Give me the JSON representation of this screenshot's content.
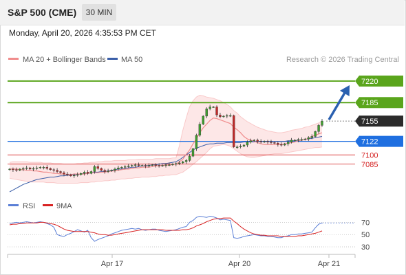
{
  "header": {
    "instrument": "S&P 500 (CME)",
    "interval": "30 MIN"
  },
  "timestamp": "Monday, April 20, 2026 4:35:53 PM CET",
  "legend": {
    "ma20": "MA 20 + Bollinger Bands",
    "ma50": "MA 50",
    "credit": "Research © 2026 Trading Central"
  },
  "colors": {
    "up_target": "#5aa51c",
    "current": "#2b2b2b",
    "pivot": "#1f6fe0",
    "support": "#d42020",
    "ma20": "#f08c8c",
    "ma50": "#3a5ea8",
    "bollinger_fill": "#fde3e3",
    "rsi": "#5b7fd6",
    "rsi_ma": "#d82222",
    "arrow": "#2a60b0"
  },
  "chart_data": [
    {
      "type": "candlestick",
      "title": "",
      "ylim": [
        7030,
        7240
      ],
      "x_ticks": [
        "Apr 17",
        "Apr 20",
        "Apr 21"
      ],
      "levels": [
        {
          "name": "resistance-2",
          "value": 7220,
          "label": "7220",
          "style": "green-line"
        },
        {
          "name": "resistance-1",
          "value": 7185,
          "label": "7185",
          "style": "green-line"
        },
        {
          "name": "last-price",
          "value": 7155,
          "label": "7155",
          "style": "dotted"
        },
        {
          "name": "pivot",
          "value": 7122,
          "label": "7122",
          "style": "blue-line"
        },
        {
          "name": "support-1",
          "value": 7100,
          "label": "7100",
          "style": "red-line"
        },
        {
          "name": "support-2",
          "value": 7085,
          "label": "7085",
          "style": "red-line"
        }
      ],
      "close": [
        7077,
        7076,
        7075,
        7077,
        7078,
        7079,
        7077,
        7078,
        7079,
        7080,
        7080,
        7078,
        7076,
        7075,
        7073,
        7071,
        7069,
        7068,
        7066,
        7067,
        7068,
        7070,
        7072,
        7070,
        7073,
        7081,
        7078,
        7075,
        7073,
        7074,
        7075,
        7077,
        7079,
        7080,
        7081,
        7082,
        7083,
        7084,
        7083,
        7083,
        7082,
        7083,
        7084,
        7083,
        7082,
        7083,
        7084,
        7084,
        7085,
        7086,
        7087,
        7089,
        7091,
        7098,
        7110,
        7132,
        7150,
        7163,
        7175,
        7178,
        7178,
        7165,
        7162,
        7163,
        7164,
        7164,
        7113,
        7113,
        7114,
        7116,
        7121,
        7123,
        7124,
        7122,
        7121,
        7122,
        7121,
        7120,
        7119,
        7117,
        7116,
        7118,
        7121,
        7124,
        7124,
        7125,
        7125,
        7126,
        7128,
        7130,
        7138,
        7148,
        7155
      ],
      "ma20": [
        7077,
        7077,
        7077,
        7076,
        7076,
        7075,
        7075,
        7074,
        7074,
        7073,
        7072,
        7072,
        7071,
        7070,
        7070,
        7069,
        7069,
        7068,
        7068,
        7069,
        7069,
        7069,
        7069,
        7070,
        7071,
        7071,
        7071,
        7072,
        7072,
        7073,
        7074,
        7074,
        7075,
        7076,
        7077,
        7077,
        7078,
        7079,
        7079,
        7080,
        7080,
        7080,
        7081,
        7082,
        7083,
        7083,
        7083,
        7084,
        7084,
        7085,
        7089,
        7093,
        7101,
        7108,
        7118,
        7126,
        7136,
        7144,
        7150,
        7156,
        7160,
        7159,
        7157,
        7155,
        7153,
        7151,
        7145,
        7141,
        7136,
        7130,
        7126,
        7124,
        7122,
        7120,
        7118,
        7117,
        7117,
        7117,
        7117,
        7117,
        7117,
        7118,
        7119,
        7120,
        7121,
        7123,
        7124,
        7125,
        7127,
        7130,
        7132,
        7134,
        7136
      ],
      "ma50": [
        7040,
        7043,
        7046,
        7049,
        7052,
        7054,
        7056,
        7058,
        7060,
        7061,
        7062,
        7063,
        7064,
        7064,
        7065,
        7066,
        7066,
        7067,
        7067,
        7068,
        7068,
        7069,
        7070,
        7070,
        7071,
        7072,
        7072,
        7073,
        7073,
        7074,
        7075,
        7076,
        7077,
        7077,
        7078,
        7079,
        7080,
        7080,
        7081,
        7082,
        7082,
        7083,
        7084,
        7084,
        7085,
        7086,
        7086,
        7087,
        7088,
        7089,
        7092,
        7096,
        7100,
        7104,
        7108,
        7111,
        7113,
        7115,
        7117,
        7118,
        7118,
        7119,
        7119,
        7119,
        7120,
        7120,
        7120,
        7120,
        7120,
        7121,
        7121,
        7121,
        7121,
        7122,
        7122,
        7122,
        7122,
        7122,
        7122,
        7122,
        7122,
        7122,
        7123,
        7123,
        7123,
        7124,
        7124,
        7125,
        7126,
        7127,
        7128,
        7129,
        7130
      ],
      "bb_upper": [
        7088,
        7089,
        7089,
        7089,
        7089,
        7089,
        7088,
        7088,
        7088,
        7088,
        7087,
        7087,
        7087,
        7086,
        7086,
        7086,
        7085,
        7085,
        7085,
        7085,
        7086,
        7086,
        7087,
        7087,
        7088,
        7088,
        7089,
        7089,
        7090,
        7090,
        7090,
        7091,
        7091,
        7091,
        7091,
        7092,
        7092,
        7092,
        7093,
        7093,
        7093,
        7093,
        7093,
        7094,
        7094,
        7094,
        7094,
        7094,
        7095,
        7095,
        7115,
        7140,
        7160,
        7178,
        7188,
        7194,
        7197,
        7196,
        7194,
        7193,
        7192,
        7190,
        7188,
        7185,
        7182,
        7178,
        7172,
        7168,
        7162,
        7158,
        7154,
        7151,
        7148,
        7145,
        7143,
        7141,
        7139,
        7138,
        7137,
        7136,
        7136,
        7137,
        7138,
        7140,
        7141,
        7142,
        7143,
        7145,
        7146,
        7148,
        7150,
        7152,
        7155
      ],
      "bb_lower": [
        7062,
        7061,
        7060,
        7059,
        7058,
        7057,
        7056,
        7056,
        7056,
        7056,
        7056,
        7055,
        7055,
        7055,
        7054,
        7054,
        7054,
        7054,
        7054,
        7054,
        7054,
        7055,
        7055,
        7055,
        7056,
        7056,
        7057,
        7057,
        7058,
        7058,
        7059,
        7059,
        7060,
        7061,
        7061,
        7062,
        7062,
        7063,
        7063,
        7064,
        7064,
        7064,
        7065,
        7065,
        7066,
        7066,
        7067,
        7067,
        7068,
        7068,
        7070,
        7072,
        7076,
        7080,
        7085,
        7089,
        7094,
        7099,
        7104,
        7110,
        7114,
        7115,
        7116,
        7117,
        7116,
        7114,
        7110,
        7106,
        7102,
        7099,
        7097,
        7096,
        7096,
        7097,
        7098,
        7099,
        7100,
        7101,
        7102,
        7102,
        7102,
        7103,
        7104,
        7105,
        7106,
        7107,
        7108,
        7109,
        7110,
        7111,
        7112,
        7112,
        7113
      ],
      "forecast": {
        "from": 7155,
        "to": 7220,
        "direction": "up"
      }
    },
    {
      "type": "line",
      "title": "RSI",
      "legend": [
        "RSI",
        "9MA"
      ],
      "ylim": [
        20,
        85
      ],
      "y_ticks": [
        70,
        50,
        30
      ],
      "rsi": [
        68,
        69,
        70,
        69,
        70,
        71,
        70,
        69,
        70,
        71,
        70,
        68,
        66,
        62,
        50,
        48,
        47,
        50,
        52,
        55,
        58,
        56,
        54,
        57,
        45,
        39,
        42,
        44,
        46,
        48,
        51,
        53,
        55,
        57,
        58,
        59,
        60,
        59,
        60,
        58,
        57,
        58,
        59,
        59,
        57,
        56,
        55,
        56,
        57,
        58,
        60,
        62,
        63,
        70,
        73,
        78,
        80,
        79,
        78,
        80,
        79,
        77,
        74,
        75,
        74,
        73,
        45,
        44,
        45,
        47,
        48,
        49,
        50,
        49,
        48,
        48,
        47,
        47,
        46,
        45,
        45,
        47,
        48,
        50,
        50,
        51,
        51,
        52,
        53,
        54,
        61,
        67,
        69
      ],
      "rsi_ma": [
        66,
        67,
        67,
        68,
        68,
        69,
        69,
        69,
        69,
        70,
        70,
        69,
        68,
        67,
        65,
        62,
        59,
        57,
        56,
        55,
        55,
        55,
        55,
        55,
        54,
        53,
        51,
        50,
        50,
        49,
        49,
        50,
        51,
        52,
        53,
        54,
        55,
        56,
        57,
        58,
        58,
        58,
        58,
        58,
        58,
        58,
        57,
        57,
        57,
        57,
        57,
        58,
        58,
        59,
        61,
        64,
        66,
        68,
        71,
        73,
        75,
        76,
        76,
        77,
        77,
        77,
        72,
        68,
        63,
        59,
        56,
        53,
        51,
        50,
        49,
        49,
        48,
        48,
        48,
        48,
        47,
        47,
        47,
        47,
        47,
        48,
        48,
        49,
        50,
        51,
        52,
        54,
        56
      ]
    }
  ]
}
